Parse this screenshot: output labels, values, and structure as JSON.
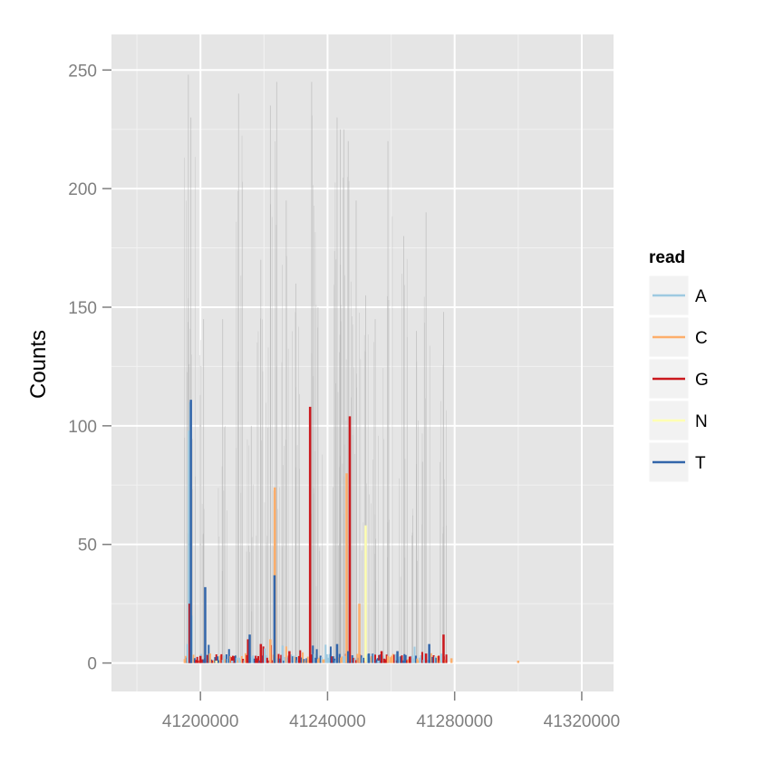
{
  "chart_data": {
    "type": "line",
    "title": "",
    "xlabel": "",
    "ylabel": "Counts",
    "xlim": [
      41172000,
      41330000
    ],
    "ylim": [
      -12,
      265
    ],
    "x_ticks": [
      41200000,
      41240000,
      41280000,
      41320000
    ],
    "x_tick_labels": [
      "41200000",
      "41240000",
      "41280000",
      "41320000"
    ],
    "y_ticks": [
      0,
      50,
      100,
      150,
      200,
      250
    ],
    "y_tick_labels": [
      "0",
      "50",
      "100",
      "150",
      "200",
      "250"
    ],
    "grid": true,
    "legend": {
      "title": "read",
      "placement": "right"
    },
    "series": [
      {
        "name": "A",
        "color": "#9ecae1",
        "x": [
          41196000,
          41196400,
          41196800,
          41197200,
          41210000,
          41243000,
          41245500,
          41256000
        ],
        "y": [
          8,
          98,
          110,
          20,
          1,
          2,
          3,
          1
        ]
      },
      {
        "name": "C",
        "color": "#fdae6b",
        "x": [
          41196800,
          41203000,
          41222000,
          41223400,
          41246000,
          41250000,
          41259000,
          41279000,
          41300000
        ],
        "y": [
          12,
          4,
          10,
          74,
          80,
          25,
          3,
          2,
          1
        ]
      },
      {
        "name": "G",
        "color": "#cb181d",
        "x": [
          41196600,
          41200000,
          41215000,
          41219000,
          41228000,
          41234500,
          41247000,
          41257000,
          41271000,
          41276500
        ],
        "y": [
          25,
          3,
          10,
          8,
          5,
          108,
          104,
          5,
          4,
          12
        ]
      },
      {
        "name": "N",
        "color": "#ffffb2",
        "x": [
          41205000,
          41252000
        ],
        "y": [
          1,
          58
        ]
      },
      {
        "name": "T",
        "color": "#3366aa",
        "x": [
          41197000,
          41201500,
          41215500,
          41223300,
          41243000,
          41246500,
          41253000,
          41262000,
          41272000
        ],
        "y": [
          111,
          32,
          12,
          37,
          8,
          5,
          4,
          5,
          8
        ]
      }
    ],
    "coverage": {
      "color": "#aaaaaa",
      "x": [
        41196200,
        41197000,
        41201000,
        41207000,
        41212000,
        41216000,
        41219000,
        41222000,
        41224000,
        41227000,
        41230000,
        41235000,
        41237000,
        41243000,
        41244000,
        41245200,
        41246500,
        41249000,
        41252000,
        41255000,
        41259000,
        41264000,
        41268000,
        41271000,
        41276500
      ],
      "y": [
        248,
        230,
        145,
        145,
        240,
        100,
        170,
        235,
        245,
        195,
        160,
        245,
        150,
        230,
        225,
        225,
        220,
        195,
        155,
        145,
        220,
        180,
        140,
        190,
        148
      ]
    }
  }
}
